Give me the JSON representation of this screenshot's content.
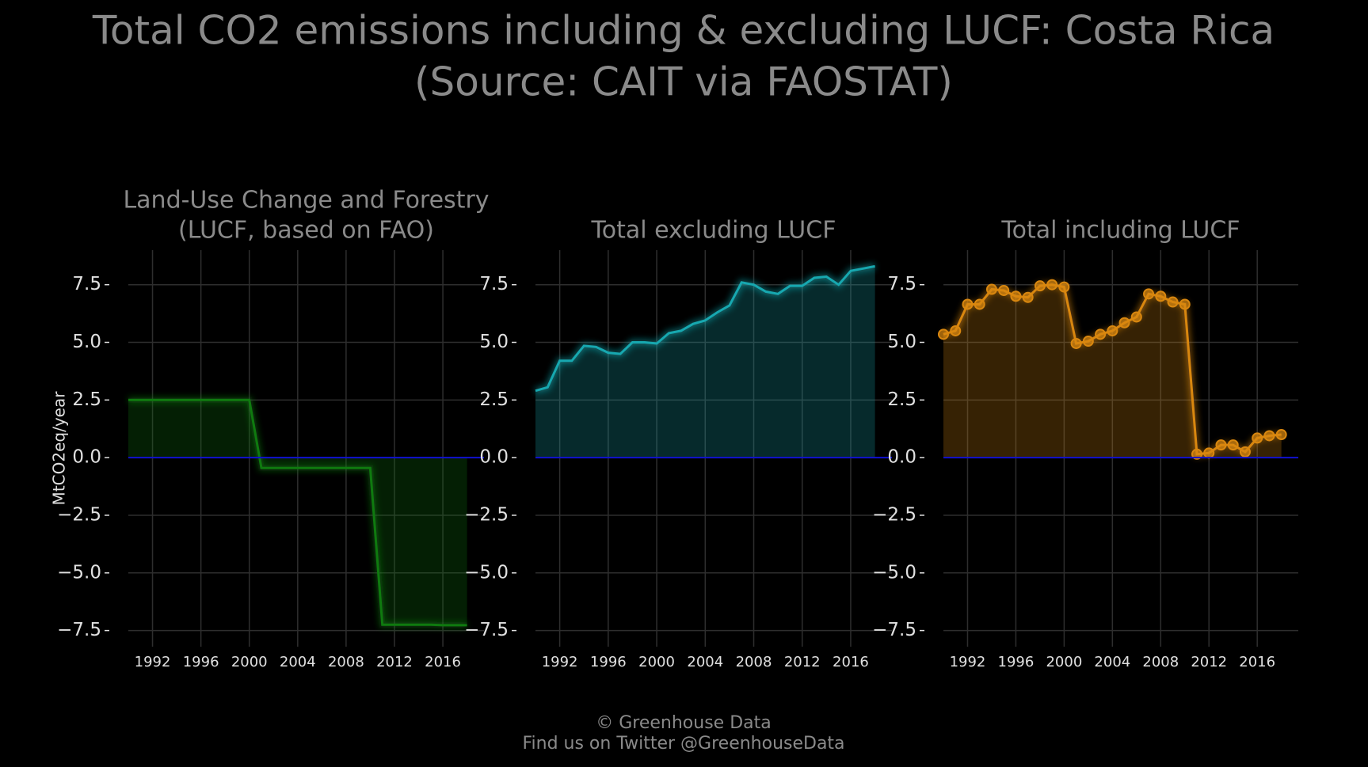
{
  "title": "Total CO2 emissions including & excluding LUCF: Costa Rica",
  "subtitle": "(Source: CAIT via FAOSTAT)",
  "footer": [
    "© Greenhouse Data",
    "Find us on Twitter @GreenhouseData"
  ],
  "chart_data": [
    {
      "type": "line",
      "title": [
        "Land-Use Change and Forestry",
        "(LUCF, based on FAO)"
      ],
      "ylabel": "MtCO2eq/year",
      "x": [
        1990,
        1991,
        1992,
        1993,
        1994,
        1995,
        1996,
        1997,
        1998,
        1999,
        2000,
        2001,
        2002,
        2003,
        2004,
        2005,
        2006,
        2007,
        2008,
        2009,
        2010,
        2011,
        2012,
        2013,
        2014,
        2015,
        2016,
        2017,
        2018
      ],
      "values": [
        2.5,
        2.5,
        2.5,
        2.5,
        2.5,
        2.5,
        2.5,
        2.5,
        2.5,
        2.5,
        2.5,
        -0.45,
        -0.45,
        -0.45,
        -0.45,
        -0.45,
        -0.45,
        -0.45,
        -0.45,
        -0.45,
        -0.45,
        -7.25,
        -7.25,
        -7.25,
        -7.25,
        -7.25,
        -7.27,
        -7.27,
        -7.27
      ],
      "color": "#0f7a0f",
      "fill": true,
      "markers": false,
      "zero_line_color": "#1010d0",
      "xlim": [
        1990,
        2019.4
      ],
      "xticks": [
        1992,
        1996,
        2000,
        2004,
        2008,
        2012,
        2016
      ],
      "ylim": [
        -8.2,
        9
      ],
      "yticks": [
        {
          "value": -7.5,
          "label": "−7.5"
        },
        {
          "value": -5,
          "label": "−5.0"
        },
        {
          "value": -2.5,
          "label": "−2.5"
        },
        {
          "value": 0,
          "label": "0.0"
        },
        2.5,
        {
          "value": 5,
          "label": "5.0"
        },
        7.5
      ],
      "grid": true
    },
    {
      "type": "line",
      "title": [
        "Total excluding LUCF"
      ],
      "x": [
        1990,
        1991,
        1992,
        1993,
        1994,
        1995,
        1996,
        1997,
        1998,
        1999,
        2000,
        2001,
        2002,
        2003,
        2004,
        2005,
        2006,
        2007,
        2008,
        2009,
        2010,
        2011,
        2012,
        2013,
        2014,
        2015,
        2016,
        2017,
        2018
      ],
      "values": [
        2.9,
        3.05,
        4.2,
        4.2,
        4.85,
        4.8,
        4.55,
        4.5,
        5.0,
        5.0,
        4.95,
        5.4,
        5.5,
        5.8,
        5.95,
        6.3,
        6.6,
        7.6,
        7.5,
        7.2,
        7.1,
        7.45,
        7.45,
        7.8,
        7.85,
        7.5,
        8.1,
        8.2,
        8.3
      ],
      "color": "#17a8b0",
      "fill": true,
      "markers": false,
      "zero_line_color": "#1010d0",
      "xlim": [
        1990,
        2019.4
      ],
      "xticks": [
        1992,
        1996,
        2000,
        2004,
        2008,
        2012,
        2016
      ],
      "ylim": [
        -8.2,
        9
      ],
      "yticks": [
        {
          "value": -7.5,
          "label": "−7.5"
        },
        {
          "value": -5,
          "label": "−5.0"
        },
        {
          "value": -2.5,
          "label": "−2.5"
        },
        {
          "value": 0,
          "label": "0.0"
        },
        2.5,
        {
          "value": 5,
          "label": "5.0"
        },
        7.5
      ],
      "grid": true
    },
    {
      "type": "line",
      "title": [
        "Total including LUCF"
      ],
      "x": [
        1990,
        1991,
        1992,
        1993,
        1994,
        1995,
        1996,
        1997,
        1998,
        1999,
        2000,
        2001,
        2002,
        2003,
        2004,
        2005,
        2006,
        2007,
        2008,
        2009,
        2010,
        2011,
        2012,
        2013,
        2014,
        2015,
        2016,
        2017,
        2018
      ],
      "values": [
        5.35,
        5.5,
        6.65,
        6.65,
        7.3,
        7.25,
        7.0,
        6.95,
        7.45,
        7.5,
        7.4,
        4.95,
        5.05,
        5.35,
        5.5,
        5.85,
        6.1,
        7.1,
        7.0,
        6.75,
        6.65,
        0.15,
        0.2,
        0.55,
        0.55,
        0.25,
        0.85,
        0.95,
        1.0
      ],
      "color": "#d9870f",
      "fill": true,
      "markers": true,
      "zero_line_color": "#1010d0",
      "xlim": [
        1990,
        2019.4
      ],
      "xticks": [
        1992,
        1996,
        2000,
        2004,
        2008,
        2012,
        2016
      ],
      "ylim": [
        -8.2,
        9
      ],
      "yticks": [
        {
          "value": -7.5,
          "label": "−7.5"
        },
        {
          "value": -5,
          "label": "−5.0"
        },
        {
          "value": -2.5,
          "label": "−2.5"
        },
        {
          "value": 0,
          "label": "0.0"
        },
        2.5,
        {
          "value": 5,
          "label": "5.0"
        },
        7.5
      ],
      "grid": true
    }
  ]
}
